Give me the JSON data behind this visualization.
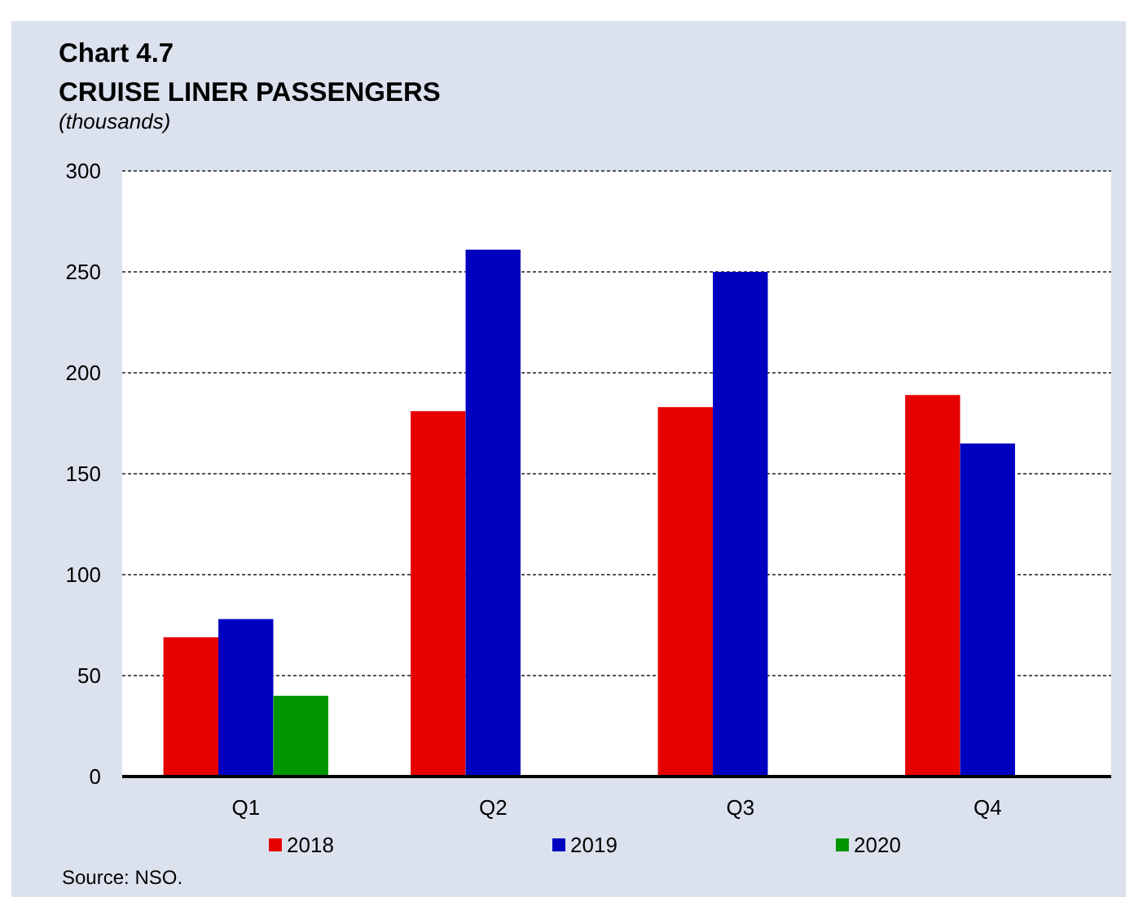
{
  "chart_data": {
    "type": "bar",
    "title": "Chart 4.7",
    "subtitle": "CRUISE LINER PASSENGERS",
    "ylabel": "(thousands)",
    "categories": [
      "Q1",
      "Q2",
      "Q3",
      "Q4"
    ],
    "series": [
      {
        "name": "2018",
        "color": "#e60000",
        "values": [
          69,
          181,
          183,
          189
        ]
      },
      {
        "name": "2019",
        "color": "#0000c0",
        "values": [
          78,
          261,
          250,
          165
        ]
      },
      {
        "name": "2020",
        "color": "#009600",
        "values": [
          40,
          null,
          null,
          null
        ]
      }
    ],
    "ylim": [
      0,
      300
    ],
    "yticks": [
      0,
      50,
      100,
      150,
      200,
      250,
      300
    ],
    "grid": "y",
    "legend": "bottom",
    "annotations": [
      "Source: NSO."
    ]
  }
}
